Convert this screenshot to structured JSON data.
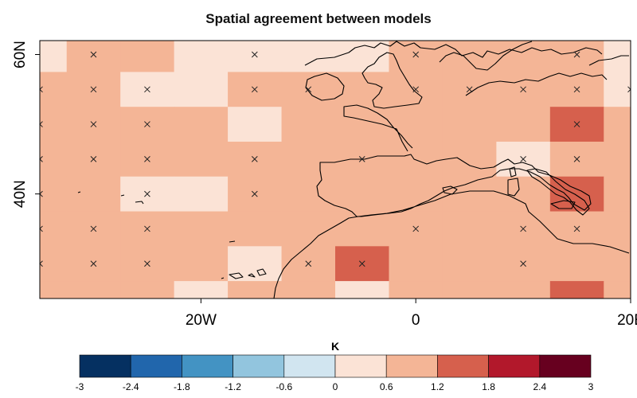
{
  "title": "Spatial agreement between models",
  "map": {
    "lon_range": [
      -35,
      20
    ],
    "lat_range": [
      25,
      62
    ],
    "cell_size_deg": 5,
    "x_ticks": [
      {
        "value": -20,
        "label": "20W"
      },
      {
        "value": 0,
        "label": "0"
      },
      {
        "value": 20,
        "label": "20E"
      }
    ],
    "y_ticks": [
      {
        "value": 40,
        "label": "40N"
      },
      {
        "value": 60,
        "label": "60N"
      }
    ],
    "column_lon_centers": [
      -35,
      -30,
      -25,
      -20,
      -15,
      -10,
      -5,
      0,
      5,
      10,
      15,
      20
    ],
    "row_lat_centers": [
      60,
      55,
      50,
      45,
      40,
      35,
      30,
      25
    ],
    "grid_bins": [
      [
        5,
        6,
        6,
        5,
        5,
        5,
        5,
        6,
        6,
        6,
        6,
        5
      ],
      [
        6,
        6,
        5,
        5,
        6,
        6,
        6,
        6,
        6,
        6,
        6,
        5
      ],
      [
        6,
        6,
        6,
        6,
        5,
        6,
        6,
        6,
        6,
        6,
        7,
        6
      ],
      [
        6,
        6,
        6,
        6,
        6,
        6,
        6,
        6,
        6,
        5,
        6,
        6
      ],
      [
        6,
        6,
        5,
        5,
        6,
        6,
        6,
        6,
        6,
        6,
        7,
        6
      ],
      [
        6,
        6,
        6,
        6,
        6,
        6,
        6,
        6,
        6,
        6,
        6,
        6
      ],
      [
        6,
        6,
        6,
        6,
        5,
        6,
        7,
        6,
        6,
        6,
        6,
        6
      ],
      [
        6,
        6,
        6,
        5,
        6,
        6,
        5,
        6,
        6,
        6,
        7,
        6
      ]
    ],
    "cross_markers": [
      [
        60,
        -30
      ],
      [
        60,
        -15
      ],
      [
        60,
        0
      ],
      [
        60,
        15
      ],
      [
        55,
        -35
      ],
      [
        55,
        -30
      ],
      [
        55,
        -25
      ],
      [
        55,
        -15
      ],
      [
        55,
        -10
      ],
      [
        55,
        0
      ],
      [
        55,
        5
      ],
      [
        55,
        10
      ],
      [
        55,
        15
      ],
      [
        55,
        20
      ],
      [
        50,
        -35
      ],
      [
        50,
        -30
      ],
      [
        50,
        -25
      ],
      [
        50,
        15
      ],
      [
        45,
        -35
      ],
      [
        45,
        -30
      ],
      [
        45,
        -25
      ],
      [
        45,
        -15
      ],
      [
        45,
        -5
      ],
      [
        45,
        10
      ],
      [
        45,
        15
      ],
      [
        40,
        -35
      ],
      [
        40,
        -25
      ],
      [
        40,
        -15
      ],
      [
        35,
        -35
      ],
      [
        35,
        -30
      ],
      [
        35,
        -25
      ],
      [
        35,
        0
      ],
      [
        35,
        10
      ],
      [
        35,
        15
      ],
      [
        30,
        -35
      ],
      [
        30,
        -30
      ],
      [
        30,
        -25
      ],
      [
        30,
        -10
      ],
      [
        30,
        -5
      ],
      [
        30,
        10
      ]
    ],
    "coastline_color": "#000000"
  },
  "colorbar": {
    "title": "K",
    "ticks": [
      "-3",
      "-2.4",
      "-1.8",
      "-1.2",
      "-0.6",
      "0",
      "0.6",
      "1.2",
      "1.8",
      "2.4",
      "3"
    ],
    "colors": [
      "#053061",
      "#2166ac",
      "#4393c3",
      "#92c5de",
      "#d1e5f0",
      "#fbe3d6",
      "#f4b596",
      "#d6604d",
      "#b2182b",
      "#67001f"
    ]
  }
}
